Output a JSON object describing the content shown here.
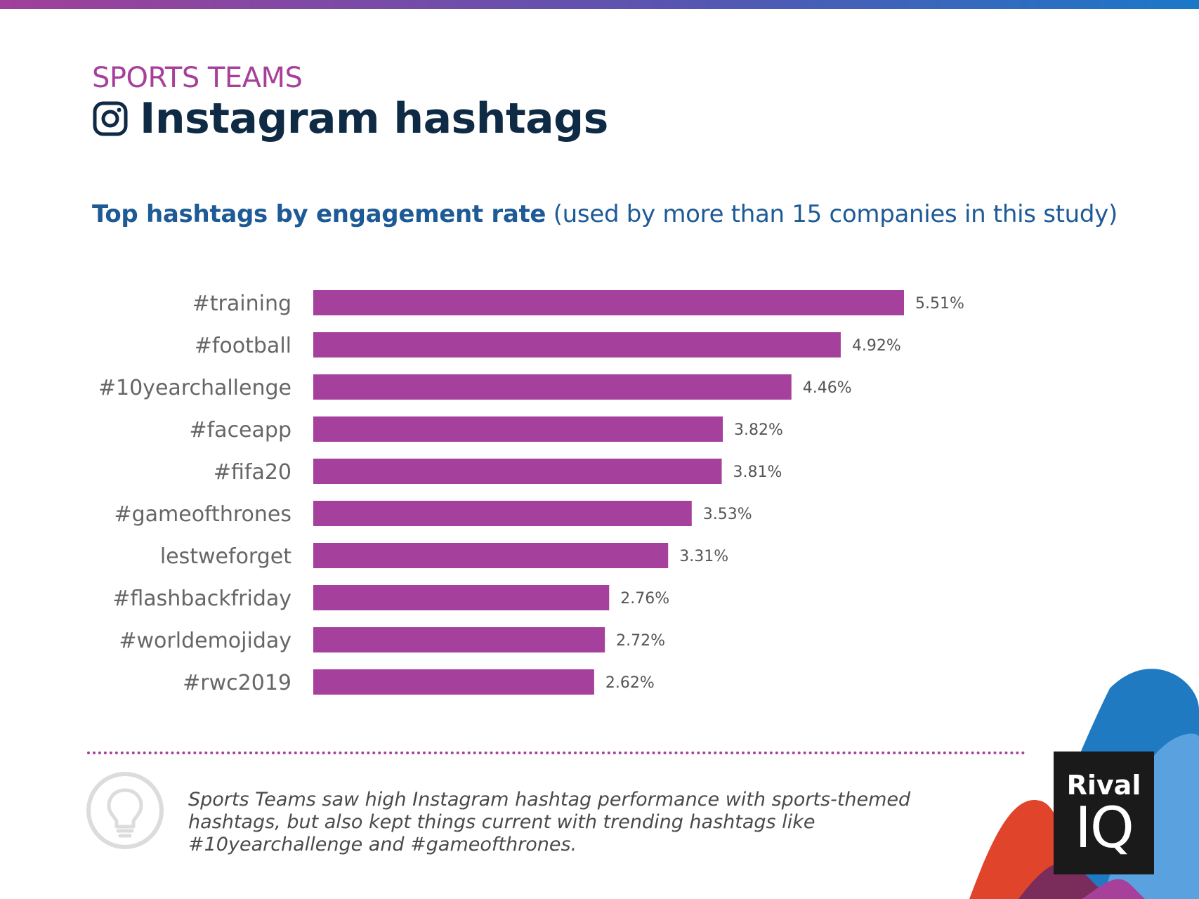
{
  "header": {
    "eyebrow": "SPORTS TEAMS",
    "title": "Instagram hashtags",
    "title_icon": "instagram-icon",
    "subtitle_bold": "Top hashtags by engagement rate",
    "subtitle_rest": " (used by more than 15 companies in this study)"
  },
  "chart_data": {
    "type": "bar",
    "orientation": "horizontal",
    "title": "Top hashtags by engagement rate",
    "categories": [
      "#training",
      "#football",
      "#10yearchallenge",
      "#faceapp",
      "#fifa20",
      "#gameofthrones",
      "lestweforget",
      "#flashbackfriday",
      "#worldemojiday",
      "#rwc2019"
    ],
    "values": [
      5.51,
      4.92,
      4.46,
      3.82,
      3.81,
      3.53,
      3.31,
      2.76,
      2.72,
      2.62
    ],
    "labels": [
      "5.51%",
      "4.92%",
      "4.46%",
      "3.82%",
      "3.81%",
      "3.53%",
      "3.31%",
      "2.76%",
      "2.72%",
      "2.62%"
    ],
    "unit": "%",
    "xlim": [
      0,
      5.51
    ],
    "grid": false,
    "bar_color": "#a5409c"
  },
  "footer": {
    "note": "Sports Teams saw high Instagram hashtag performance with sports-themed hashtags, but also kept things current with trending hashtags like #10yearchallenge and #gameofthrones.",
    "note_icon": "lightbulb-icon"
  },
  "logo": {
    "line1": "Rival",
    "line2": "IQ"
  },
  "colors": {
    "accent_purple": "#a7409a",
    "title_navy": "#0e2a44",
    "subtitle_blue": "#1d5a96",
    "bar": "#a5409c"
  }
}
